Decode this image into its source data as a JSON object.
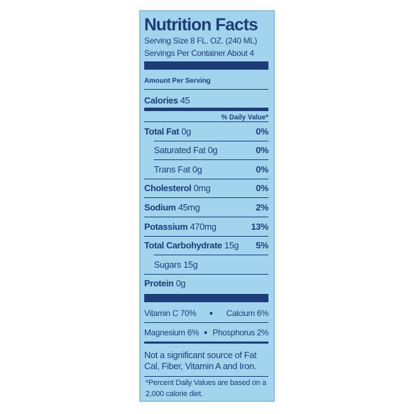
{
  "title": "Nutrition Facts",
  "serving_size": "Serving Size 8 FL. OZ. (240 ML)",
  "servings_per_container": "Servings Per Container About 4",
  "amount_per_serving": "Amount Per Serving",
  "calories": {
    "label": "Calories",
    "amount": "45"
  },
  "daily_value_header": "% Daily Value*",
  "rows": [
    {
      "name": "Total Fat",
      "amount": "0g",
      "dv": "0%"
    },
    {
      "name": "Saturated Fat",
      "amount": "0g",
      "dv": "0%"
    },
    {
      "name": "Trans Fat",
      "amount": "0g",
      "dv": "0%"
    },
    {
      "name": "Cholesterol",
      "amount": "0mg",
      "dv": "0%"
    },
    {
      "name": "Sodium",
      "amount": "45mg",
      "dv": "2%"
    },
    {
      "name": "Potassium",
      "amount": "470mg",
      "dv": "13%"
    },
    {
      "name": "Total Carbohydrate",
      "amount": "15g",
      "dv": "5%"
    },
    {
      "name": "Sugars",
      "amount": "15g"
    },
    {
      "name": "Protein",
      "amount": "0g"
    }
  ],
  "vitamins": [
    [
      "Vitamin C 70%",
      "Calcium 6%"
    ],
    [
      "Magnesium 6%",
      "Phosphorus 2%"
    ]
  ],
  "note": "Not a significant source of Fat Cal, Fiber, Vitamin A and Iron.",
  "footnote": "*Percent Daily Values are based on a 2,000 calorie diet."
}
